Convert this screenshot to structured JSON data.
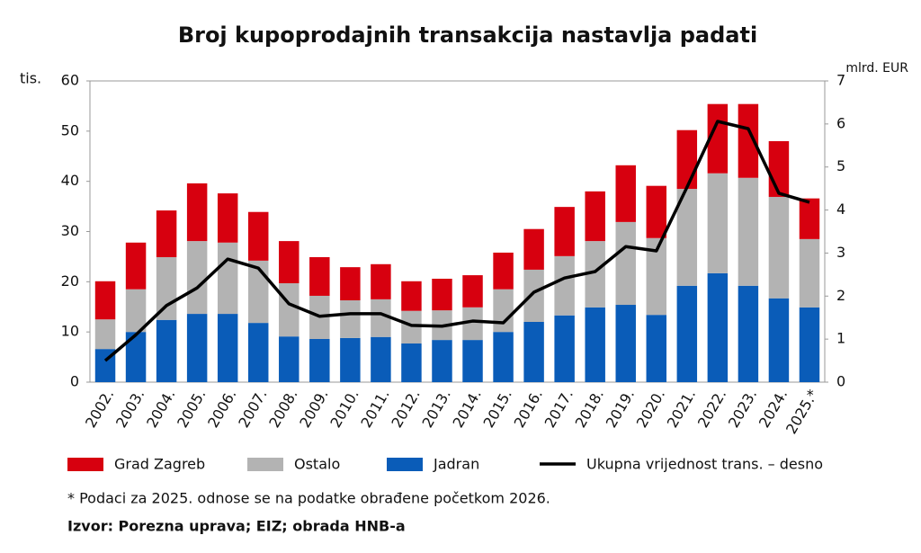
{
  "chart_data": {
    "type": "bar-line",
    "title": "Broj kupoprodajnih transakcija nastavlja padati",
    "y_label": "tis.",
    "y2_label": "mlrd. EUR",
    "categories": [
      "2002.",
      "2003.",
      "2004.",
      "2005.",
      "2006.",
      "2007.",
      "2008.",
      "2009.",
      "2010.",
      "2011.",
      "2012.",
      "2013.",
      "2014.",
      "2015.",
      "2016.",
      "2017.",
      "2018.",
      "2019.",
      "2020.",
      "2021.",
      "2022.",
      "2023.",
      "2024.",
      "2025.*"
    ],
    "series": [
      {
        "name": "Grad Zagreb",
        "color": "#d7000f",
        "type": "bar",
        "values": [
          7.6,
          9.3,
          9.3,
          11.5,
          9.8,
          9.7,
          8.4,
          7.7,
          6.6,
          7.0,
          5.9,
          6.3,
          6.4,
          7.3,
          8.1,
          9.8,
          9.9,
          11.3,
          10.4,
          11.7,
          13.8,
          14.7,
          11.1,
          8.1
        ]
      },
      {
        "name": "Ostalo",
        "color": "#b3b3b3",
        "type": "bar",
        "values": [
          5.9,
          8.5,
          12.5,
          14.5,
          14.2,
          12.4,
          10.6,
          8.6,
          7.5,
          7.5,
          6.5,
          5.9,
          6.5,
          8.5,
          10.4,
          11.8,
          13.2,
          16.5,
          15.3,
          19.3,
          19.9,
          21.5,
          20.2,
          13.6
        ]
      },
      {
        "name": "Jadran",
        "color": "#0a5cb8",
        "type": "bar",
        "values": [
          6.6,
          10.0,
          12.4,
          13.6,
          13.6,
          11.8,
          9.1,
          8.6,
          8.8,
          9.0,
          7.7,
          8.4,
          8.4,
          10.0,
          12.0,
          13.3,
          14.9,
          15.4,
          13.4,
          19.2,
          21.7,
          19.2,
          16.7,
          14.9
        ]
      },
      {
        "name": "Ukupna vrijednost trans. – desno",
        "color": "#000000",
        "type": "line",
        "axis": "y2",
        "values": [
          0.5,
          1.1,
          1.78,
          2.19,
          2.86,
          2.65,
          1.82,
          1.53,
          1.59,
          1.59,
          1.32,
          1.3,
          1.42,
          1.38,
          2.09,
          2.42,
          2.57,
          3.15,
          3.05,
          4.53,
          6.06,
          5.89,
          4.39,
          4.18
        ]
      }
    ],
    "ylim": [
      0,
      60
    ],
    "yticks": [
      0,
      10,
      20,
      30,
      40,
      50,
      60
    ],
    "y2lim": [
      0,
      7
    ],
    "y2ticks": [
      0,
      1,
      2,
      3,
      4,
      5,
      6,
      7
    ],
    "grid": false,
    "note": "* Podaci za 2025. odnose se na podatke obrađene početkom 2026.",
    "source": "Izvor: Porezna uprava; EIZ; obrada HNB-a"
  }
}
